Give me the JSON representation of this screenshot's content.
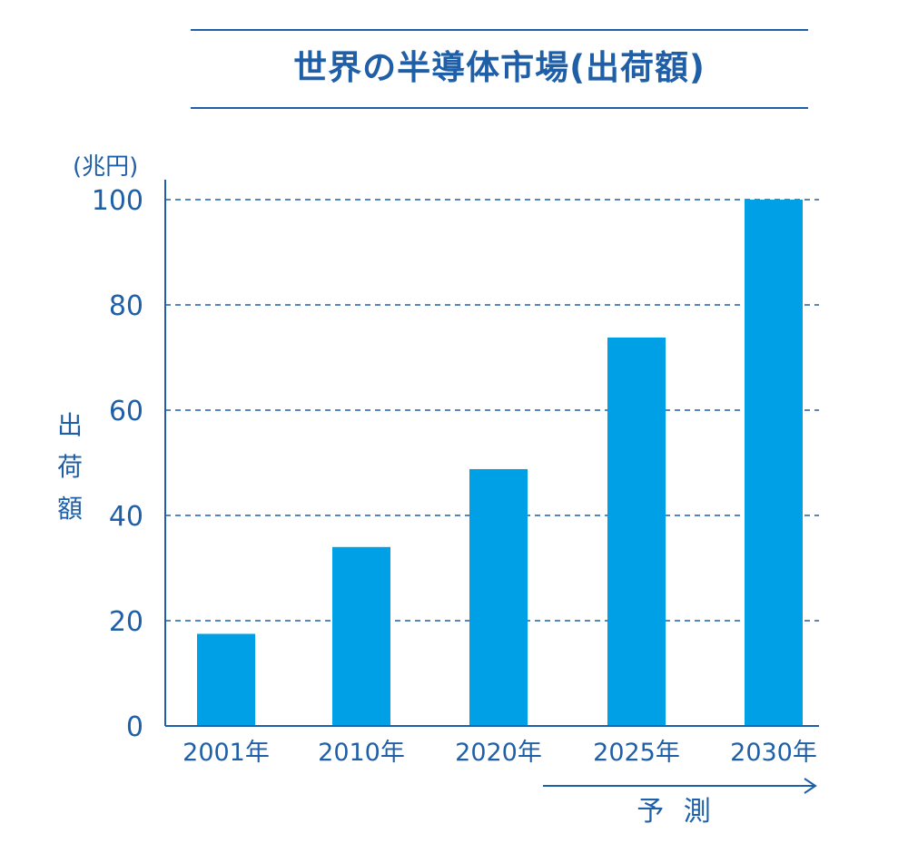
{
  "chart_data": {
    "type": "bar",
    "title": "世界の半導体市場(出荷額)",
    "unit": "(兆円)",
    "ylabel": "出荷額",
    "xlabel": "",
    "categories": [
      "2001年",
      "2010年",
      "2020年",
      "2025年",
      "2030年"
    ],
    "values": [
      17.5,
      34,
      48.8,
      73.8,
      100
    ],
    "ylim": [
      0,
      100
    ],
    "yticks": [
      0,
      20,
      40,
      60,
      80,
      100
    ],
    "grid": true,
    "bar_color": "#00a0e6",
    "text_color": "#1f5fa8",
    "annotation": {
      "label": "予 測",
      "from_category": "2025年",
      "to_category": "2030年"
    }
  }
}
